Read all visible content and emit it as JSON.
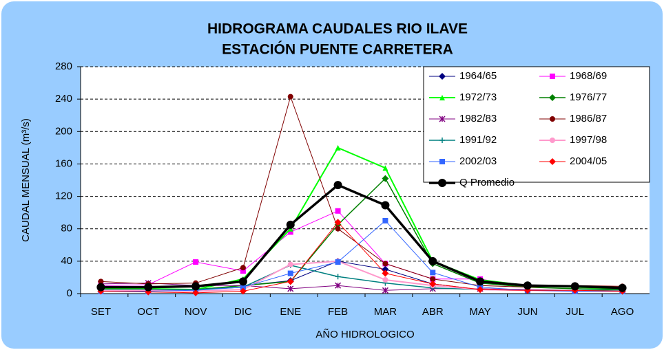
{
  "chart_data": {
    "type": "line",
    "title": "HIDROGRAMA CAUDALES RIO ILAVE",
    "subtitle": "ESTACIÓN PUENTE CARRETERA",
    "y_label": "CAUDAL MENSUAL (m³/s)",
    "x_label": "AÑO HIDROLOGICO",
    "categories": [
      "SET",
      "OCT",
      "NOV",
      "DIC",
      "ENE",
      "FEB",
      "MAR",
      "ABR",
      "MAY",
      "JUN",
      "JUL",
      "AGO"
    ],
    "ylim": [
      0,
      280
    ],
    "yticks": [
      0,
      40,
      80,
      120,
      160,
      200,
      240,
      280
    ],
    "grid": true,
    "legend": "upper right",
    "series": [
      {
        "name": "1964/65",
        "color": "#000080",
        "marker": "diamond",
        "line_width": 1,
        "values": [
          5,
          5,
          5,
          10,
          16,
          40,
          30,
          12,
          5,
          4,
          4,
          3
        ]
      },
      {
        "name": "1968/69",
        "color": "#ff00ff",
        "marker": "square",
        "line_width": 1,
        "values": [
          10,
          11,
          39,
          28,
          76,
          102,
          37,
          18,
          18,
          8,
          6,
          5
        ]
      },
      {
        "name": "1972/73",
        "color": "#00ff00",
        "marker": "triangle",
        "line_width": 2,
        "values": [
          6,
          6,
          5,
          18,
          80,
          180,
          155,
          40,
          17,
          10,
          8,
          6
        ]
      },
      {
        "name": "1976/77",
        "color": "#008000",
        "marker": "diamond",
        "line_width": 1.5,
        "values": [
          5,
          5,
          5,
          10,
          15,
          85,
          142,
          37,
          13,
          8,
          6,
          5
        ]
      },
      {
        "name": "1982/83",
        "color": "#800080",
        "marker": "star",
        "line_width": 1,
        "values": [
          12,
          13,
          10,
          10,
          6,
          10,
          4,
          6,
          6,
          5,
          4,
          4
        ]
      },
      {
        "name": "1986/87",
        "color": "#800000",
        "marker": "circle",
        "line_width": 1,
        "values": [
          15,
          12,
          13,
          32,
          243,
          80,
          37,
          18,
          10,
          8,
          10,
          9
        ]
      },
      {
        "name": "1991/92",
        "color": "#008080",
        "marker": "plus",
        "line_width": 1.5,
        "values": [
          5,
          5,
          5,
          8,
          35,
          21,
          13,
          7,
          5,
          4,
          4,
          4
        ]
      },
      {
        "name": "1997/98",
        "color": "#ff99cc",
        "marker": "circle",
        "line_width": 2,
        "values": [
          4,
          4,
          3,
          5,
          36,
          40,
          17,
          10,
          5,
          4,
          3,
          3
        ]
      },
      {
        "name": "2002/03",
        "color": "#3366ff",
        "marker": "square",
        "line_width": 1,
        "values": [
          3,
          3,
          4,
          8,
          25,
          39,
          90,
          26,
          8,
          4,
          3,
          3
        ]
      },
      {
        "name": "2004/05",
        "color": "#ff0000",
        "marker": "diamond",
        "line_width": 1,
        "values": [
          3,
          2,
          1,
          3,
          15,
          88,
          25,
          12,
          5,
          4,
          4,
          3
        ]
      },
      {
        "name": "Q Promedio",
        "color": "#000000",
        "marker": "circle",
        "line_width": 3.5,
        "values": [
          8,
          8,
          9,
          15,
          85,
          134,
          109,
          40,
          15,
          10,
          9,
          7
        ]
      }
    ]
  }
}
